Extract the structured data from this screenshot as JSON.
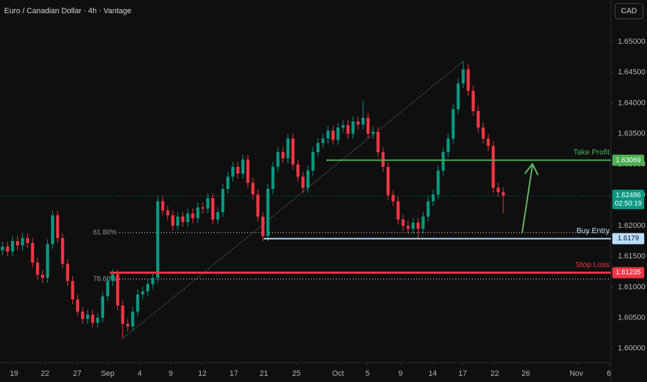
{
  "chart_data": {
    "type": "candlestick",
    "title": "Euro / Canadian Dollar · 4h · Vantage",
    "currency": "CAD",
    "up_color": "#089981",
    "down_color": "#f23645",
    "grid": false,
    "xlim": [
      0,
      122
    ],
    "ylim": [
      1.5977,
      1.6568
    ],
    "yticks": [
      {
        "value": 1.6,
        "label": "1.60000"
      },
      {
        "value": 1.605,
        "label": "1.60500"
      },
      {
        "value": 1.61,
        "label": "1.61000"
      },
      {
        "value": 1.615,
        "label": "1.61500"
      },
      {
        "value": 1.62,
        "label": "1.62000"
      },
      {
        "value": 1.625,
        "label": "1.62500"
      },
      {
        "value": 1.63,
        "label": "1.63000"
      },
      {
        "value": 1.635,
        "label": "1.63500"
      },
      {
        "value": 1.64,
        "label": "1.64000"
      },
      {
        "value": 1.645,
        "label": "1.64500"
      },
      {
        "value": 1.65,
        "label": "1.65000"
      }
    ],
    "xticks": [
      {
        "value": 2.8,
        "label": "19"
      },
      {
        "value": 9.0,
        "label": "22"
      },
      {
        "value": 15.4,
        "label": "27"
      },
      {
        "value": 21.5,
        "label": "Sep"
      },
      {
        "value": 27.9,
        "label": "4"
      },
      {
        "value": 34.1,
        "label": "9"
      },
      {
        "value": 40.4,
        "label": "12"
      },
      {
        "value": 46.7,
        "label": "17"
      },
      {
        "value": 52.7,
        "label": "21"
      },
      {
        "value": 59.2,
        "label": "25"
      },
      {
        "value": 67.5,
        "label": "Oct"
      },
      {
        "value": 73.4,
        "label": "5"
      },
      {
        "value": 80.0,
        "label": "9"
      },
      {
        "value": 86.4,
        "label": "14"
      },
      {
        "value": 92.4,
        "label": "17"
      },
      {
        "value": 98.8,
        "label": "22"
      },
      {
        "value": 105.0,
        "label": "26"
      },
      {
        "value": 115.1,
        "label": "Nov"
      },
      {
        "value": 121.6,
        "label": "6"
      }
    ],
    "last_price": 1.62486,
    "countdown": "02:50:19",
    "levels": [
      {
        "name": "Take Profit",
        "value": 1.63069,
        "color": "#4caf50"
      },
      {
        "name": "Buy Entry",
        "value": 1.6179,
        "color": "#bbdefb"
      },
      {
        "name": "Stop Loss",
        "value": 1.61235,
        "color": "#f23645"
      }
    ],
    "fib_levels": [
      {
        "label": "61.80%",
        "value": 1.6189
      },
      {
        "label": "78.60%",
        "value": 1.6113
      }
    ],
    "ohlc": [
      [
        1.616,
        1.6174,
        1.6152,
        1.6166
      ],
      [
        1.6166,
        1.6174,
        1.615,
        1.6158
      ],
      [
        1.6158,
        1.6183,
        1.615,
        1.6175
      ],
      [
        1.6175,
        1.6183,
        1.616,
        1.6168
      ],
      [
        1.6168,
        1.6188,
        1.616,
        1.618
      ],
      [
        1.618,
        1.6188,
        1.6164,
        1.6172
      ],
      [
        1.6172,
        1.618,
        1.6132,
        1.614
      ],
      [
        1.614,
        1.6148,
        1.6112,
        1.612
      ],
      [
        1.612,
        1.6128,
        1.6107,
        1.6115
      ],
      [
        1.6115,
        1.6178,
        1.6107,
        1.617
      ],
      [
        1.617,
        1.6225,
        1.6162,
        1.6217
      ],
      [
        1.6217,
        1.6225,
        1.6172,
        1.618
      ],
      [
        1.618,
        1.6188,
        1.613,
        1.6138
      ],
      [
        1.6138,
        1.6146,
        1.6102,
        1.611
      ],
      [
        1.611,
        1.6118,
        1.6072,
        1.608
      ],
      [
        1.608,
        1.6088,
        1.6052,
        1.606
      ],
      [
        1.606,
        1.6068,
        1.604,
        1.6048
      ],
      [
        1.6048,
        1.6063,
        1.604,
        1.6055
      ],
      [
        1.6055,
        1.6063,
        1.6034,
        1.6042
      ],
      [
        1.6042,
        1.6058,
        1.6034,
        1.605
      ],
      [
        1.605,
        1.6093,
        1.6042,
        1.6085
      ],
      [
        1.6085,
        1.6118,
        1.6077,
        1.611
      ],
      [
        1.611,
        1.6129,
        1.6102,
        1.6121
      ],
      [
        1.6121,
        1.6129,
        1.6062,
        1.607
      ],
      [
        1.607,
        1.6078,
        1.6016,
        1.604
      ],
      [
        1.604,
        1.6048,
        1.6028,
        1.6036
      ],
      [
        1.6036,
        1.6068,
        1.6028,
        1.606
      ],
      [
        1.606,
        1.6096,
        1.6052,
        1.6088
      ],
      [
        1.6088,
        1.6101,
        1.608,
        1.6093
      ],
      [
        1.6093,
        1.6113,
        1.6085,
        1.6105
      ],
      [
        1.6105,
        1.6123,
        1.6097,
        1.6115
      ],
      [
        1.6115,
        1.6248,
        1.6107,
        1.624
      ],
      [
        1.624,
        1.6248,
        1.6217,
        1.6225
      ],
      [
        1.6225,
        1.6233,
        1.6209,
        1.6217
      ],
      [
        1.6217,
        1.6225,
        1.6192,
        1.62
      ],
      [
        1.62,
        1.6223,
        1.6192,
        1.6215
      ],
      [
        1.6215,
        1.6223,
        1.6198,
        1.6206
      ],
      [
        1.6206,
        1.6228,
        1.6198,
        1.622
      ],
      [
        1.622,
        1.6228,
        1.6204,
        1.6212
      ],
      [
        1.6212,
        1.6238,
        1.6204,
        1.623
      ],
      [
        1.623,
        1.6238,
        1.622,
        1.6228
      ],
      [
        1.6228,
        1.6253,
        1.622,
        1.6245
      ],
      [
        1.6245,
        1.6253,
        1.6202,
        1.621
      ],
      [
        1.621,
        1.623,
        1.6202,
        1.6222
      ],
      [
        1.6222,
        1.6268,
        1.6214,
        1.626
      ],
      [
        1.626,
        1.6288,
        1.6252,
        1.628
      ],
      [
        1.628,
        1.6304,
        1.6272,
        1.6296
      ],
      [
        1.6296,
        1.6304,
        1.6277,
        1.6285
      ],
      [
        1.6285,
        1.6316,
        1.6277,
        1.6308
      ],
      [
        1.6308,
        1.6316,
        1.6262,
        1.627
      ],
      [
        1.627,
        1.6278,
        1.6243,
        1.6251
      ],
      [
        1.6251,
        1.6259,
        1.6207,
        1.6215
      ],
      [
        1.6215,
        1.6223,
        1.6175,
        1.6183
      ],
      [
        1.6183,
        1.6268,
        1.6175,
        1.626
      ],
      [
        1.626,
        1.6304,
        1.6252,
        1.6296
      ],
      [
        1.6296,
        1.6328,
        1.6288,
        1.632
      ],
      [
        1.632,
        1.6328,
        1.6302,
        1.631
      ],
      [
        1.631,
        1.635,
        1.6302,
        1.6342
      ],
      [
        1.6342,
        1.635,
        1.6292,
        1.63
      ],
      [
        1.63,
        1.6308,
        1.6272,
        1.628
      ],
      [
        1.628,
        1.6288,
        1.6254,
        1.6262
      ],
      [
        1.6262,
        1.6298,
        1.6254,
        1.629
      ],
      [
        1.629,
        1.6328,
        1.6282,
        1.632
      ],
      [
        1.632,
        1.6343,
        1.6312,
        1.6335
      ],
      [
        1.6335,
        1.635,
        1.6327,
        1.6342
      ],
      [
        1.6342,
        1.6363,
        1.6334,
        1.6355
      ],
      [
        1.6355,
        1.6363,
        1.6332,
        1.634
      ],
      [
        1.634,
        1.6368,
        1.6332,
        1.636
      ],
      [
        1.636,
        1.6372,
        1.6352,
        1.6364
      ],
      [
        1.6364,
        1.6372,
        1.6342,
        1.635
      ],
      [
        1.635,
        1.6378,
        1.6342,
        1.637
      ],
      [
        1.637,
        1.6378,
        1.6357,
        1.6365
      ],
      [
        1.6365,
        1.6404,
        1.6357,
        1.6376
      ],
      [
        1.6376,
        1.6384,
        1.6342,
        1.635
      ],
      [
        1.635,
        1.6361,
        1.6342,
        1.6353
      ],
      [
        1.6353,
        1.6361,
        1.6312,
        1.632
      ],
      [
        1.632,
        1.6328,
        1.6288,
        1.6296
      ],
      [
        1.6296,
        1.6304,
        1.6242,
        1.625
      ],
      [
        1.625,
        1.6258,
        1.6232,
        1.624
      ],
      [
        1.624,
        1.6248,
        1.6202,
        1.621
      ],
      [
        1.621,
        1.6218,
        1.6192,
        1.62
      ],
      [
        1.62,
        1.6208,
        1.6187,
        1.6195
      ],
      [
        1.6195,
        1.6213,
        1.6187,
        1.6205
      ],
      [
        1.6205,
        1.6213,
        1.6179,
        1.6195
      ],
      [
        1.6195,
        1.6223,
        1.6187,
        1.6215
      ],
      [
        1.6215,
        1.6248,
        1.6207,
        1.624
      ],
      [
        1.624,
        1.6259,
        1.6232,
        1.6251
      ],
      [
        1.6251,
        1.6298,
        1.6243,
        1.629
      ],
      [
        1.629,
        1.6328,
        1.6282,
        1.632
      ],
      [
        1.632,
        1.635,
        1.6312,
        1.6342
      ],
      [
        1.6342,
        1.6398,
        1.6334,
        1.639
      ],
      [
        1.639,
        1.644,
        1.6382,
        1.6432
      ],
      [
        1.6432,
        1.6468,
        1.6424,
        1.6455
      ],
      [
        1.6455,
        1.6463,
        1.6412,
        1.642
      ],
      [
        1.642,
        1.6428,
        1.6379,
        1.6387
      ],
      [
        1.6387,
        1.6395,
        1.6352,
        1.636
      ],
      [
        1.636,
        1.6368,
        1.6334,
        1.6342
      ],
      [
        1.6342,
        1.635,
        1.6322,
        1.633
      ],
      [
        1.633,
        1.6338,
        1.6254,
        1.6262
      ],
      [
        1.6262,
        1.627,
        1.6247,
        1.6255
      ],
      [
        1.6255,
        1.6263,
        1.622,
        1.6249
      ]
    ]
  }
}
